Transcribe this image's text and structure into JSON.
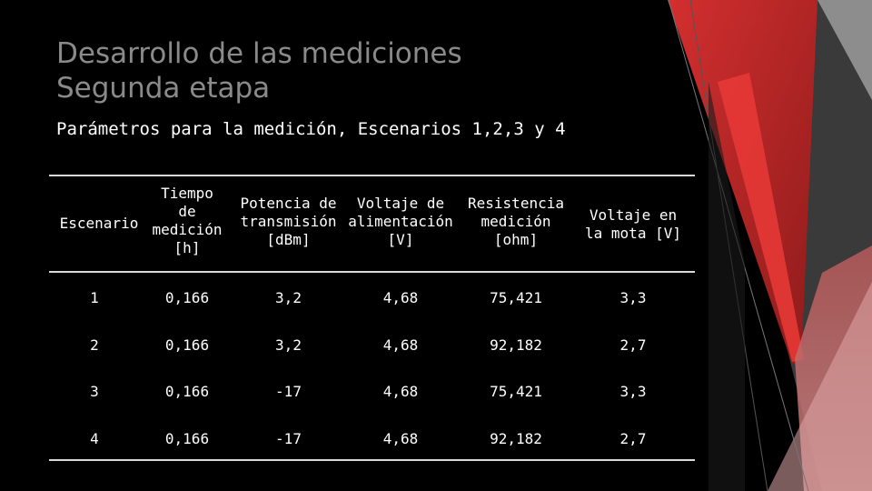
{
  "title_line1": "Desarrollo de las mediciones",
  "title_line2": "Segunda etapa",
  "subtitle": "Parámetros para la medición, Escenarios 1,2,3 y 4",
  "table": {
    "headers": [
      [
        "Escenario"
      ],
      [
        "Tiempo",
        "de",
        "medición",
        "[h]"
      ],
      [
        "Potencia de",
        "transmisión",
        "[dBm]"
      ],
      [
        "Voltaje de",
        "alimentación",
        "[V]"
      ],
      [
        "Resistencia",
        "medición",
        "[ohm]"
      ],
      [
        "Voltaje en",
        "la mota [V]"
      ]
    ],
    "rows": [
      [
        "1",
        "0,166",
        "3,2",
        "4,68",
        "75,421",
        "3,3"
      ],
      [
        "2",
        "0,166",
        "3,2",
        "4,68",
        "92,182",
        "2,7"
      ],
      [
        "3",
        "0,166",
        "-17",
        "4,68",
        "75,421",
        "3,3"
      ],
      [
        "4",
        "0,166",
        "-17",
        "4,68",
        "92,182",
        "2,7"
      ]
    ]
  },
  "colors": {
    "background": "#000000",
    "title": "#8a8a8a",
    "accent_red": "#c62828",
    "accent_red_light": "#e53935"
  }
}
